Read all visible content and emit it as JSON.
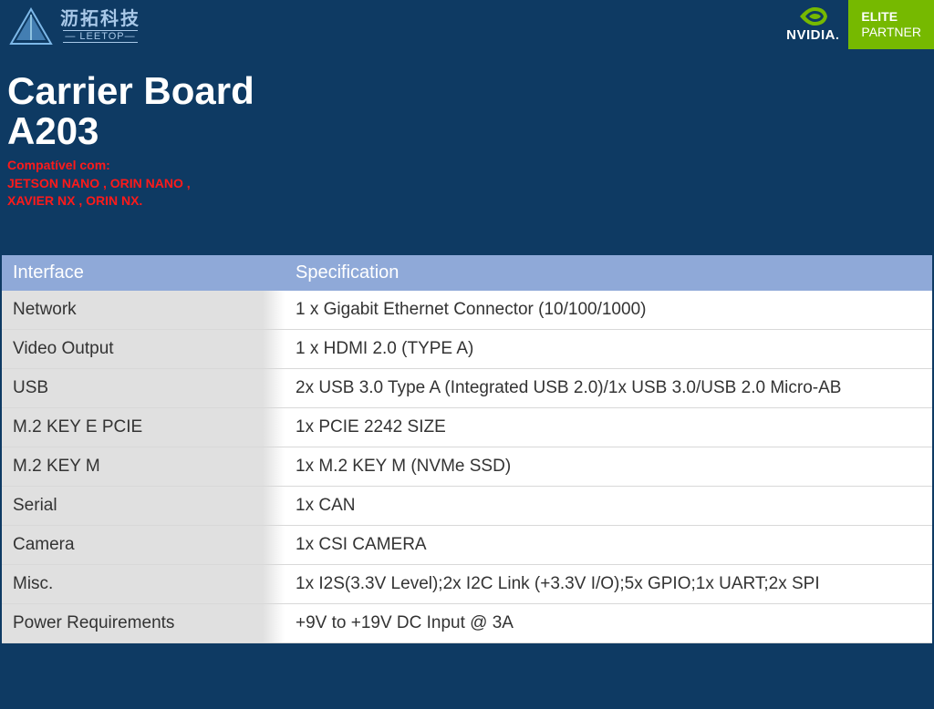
{
  "colors": {
    "background": "#0e3a63",
    "nvidia_green": "#76b900",
    "accent_red": "#ff1a1a",
    "table_header_bg": "#8fa9d8",
    "table_col1_bg": "#e0e0e0",
    "logo_tint": "#a8c8e8"
  },
  "logo": {
    "chinese": "沥拓科技",
    "leetop": "— LEETOP—"
  },
  "nvidia": {
    "brand": "NVIDIA",
    "elite_line1": "ELITE",
    "elite_line2": "PARTNER"
  },
  "title": {
    "line1": "Carrier Board",
    "line2": "A203"
  },
  "subtitle": {
    "line1": "Compatível com:",
    "line2": "JETSON NANO , ORIN NANO ,",
    "line3": "XAVIER NX , ORIN NX."
  },
  "table": {
    "columns": [
      "Interface",
      "Specification"
    ],
    "rows": [
      [
        "Network",
        "1 x   Gigabit Ethernet Connector (10/100/1000)"
      ],
      [
        "Video Output",
        "1 x HDMI 2.0 (TYPE A)"
      ],
      [
        "USB",
        "2x USB 3.0 Type A (Integrated USB 2.0)/1x USB 3.0/USB 2.0 Micro-AB"
      ],
      [
        "M.2 KEY E PCIE",
        "1x PCIE 2242 SIZE"
      ],
      [
        "M.2 KEY M",
        "1x M.2 KEY M (NVMe SSD)"
      ],
      [
        "Serial",
        "1x CAN"
      ],
      [
        "Camera",
        "1x CSI CAMERA"
      ],
      [
        "Misc.",
        "1x I2S(3.3V Level);2x I2C Link (+3.3V I/O);5x GPIO;1x UART;2x SPI"
      ],
      [
        "Power Requirements",
        "+9V to +19V   DC Input @ 3A"
      ]
    ],
    "header_fontsize": 20,
    "cell_fontsize": 19,
    "col1_width": 310
  }
}
